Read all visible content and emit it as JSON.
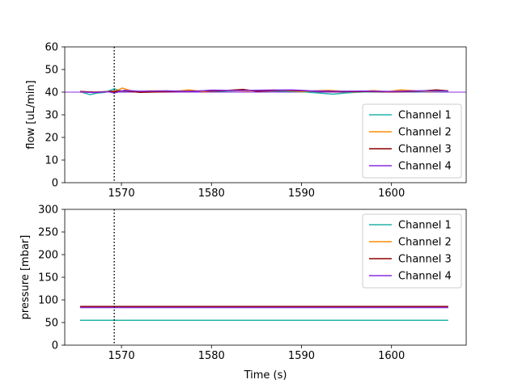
{
  "chart_data": [
    {
      "type": "line",
      "xlabel": "",
      "ylabel": "flow [uL/min]",
      "xlim": [
        1563.7,
        1608.3
      ],
      "ylim": [
        0,
        60
      ],
      "xticks": [
        1570,
        1580,
        1590,
        1600
      ],
      "yticks": [
        0,
        10,
        20,
        30,
        40,
        50,
        60
      ],
      "grid": false,
      "legend": "lower-right",
      "vline_x": 1569.2,
      "hline_y": 40,
      "series": [
        {
          "name": "Channel 1",
          "color": "#20b2aa",
          "x": [
            1565.4,
            1566.5,
            1567.3,
            1568.2,
            1569.2,
            1570.0,
            1572,
            1575,
            1578,
            1581,
            1584,
            1587,
            1590,
            1592,
            1593.5,
            1595,
            1597,
            1600,
            1603,
            1606.3
          ],
          "y": [
            40.2,
            38.9,
            39.6,
            39.9,
            41.5,
            40.5,
            40.3,
            40.3,
            40.5,
            40.4,
            40.7,
            40.5,
            40.2,
            39.6,
            39.1,
            39.7,
            40.1,
            40.2,
            40.2,
            40.3
          ]
        },
        {
          "name": "Channel 2",
          "color": "#ff8c00",
          "x": [
            1565.4,
            1567,
            1569.2,
            1570.1,
            1571.5,
            1573,
            1576,
            1577.5,
            1579,
            1581,
            1584,
            1587,
            1590,
            1593,
            1596,
            1598,
            1599.5,
            1601,
            1604,
            1606.3
          ],
          "y": [
            40.0,
            40.0,
            40.2,
            41.8,
            40.1,
            40.6,
            40.4,
            41.0,
            40.2,
            40.8,
            40.5,
            41.0,
            40.3,
            40.8,
            40.1,
            40.7,
            40.2,
            41.0,
            40.3,
            40.6
          ]
        },
        {
          "name": "Channel 3",
          "color": "#8b0000",
          "x": [
            1565.4,
            1567,
            1569.2,
            1570.5,
            1572,
            1575,
            1578,
            1581,
            1583.5,
            1585,
            1588,
            1591,
            1594,
            1597,
            1600,
            1603,
            1605,
            1606.3
          ],
          "y": [
            40.3,
            40.0,
            40.4,
            40.6,
            39.9,
            40.2,
            40.5,
            40.6,
            41.2,
            40.4,
            40.8,
            40.5,
            40.2,
            40.3,
            40.1,
            40.4,
            41.0,
            40.6
          ]
        },
        {
          "name": "Channel 4",
          "color": "#8a2be2",
          "x": [
            1565.4,
            1567,
            1568.5,
            1569.2,
            1570.3,
            1572,
            1575,
            1578,
            1580,
            1583,
            1586,
            1589,
            1591,
            1594,
            1597,
            1600,
            1603,
            1606.3
          ],
          "y": [
            40.1,
            39.8,
            40.2,
            39.6,
            40.8,
            40.4,
            40.6,
            40.3,
            40.9,
            40.7,
            40.9,
            41.0,
            40.6,
            40.4,
            40.5,
            40.3,
            40.6,
            40.5
          ]
        }
      ]
    },
    {
      "type": "line",
      "xlabel": "Time (s)",
      "ylabel": "pressure [mbar]",
      "xlim": [
        1563.7,
        1608.3
      ],
      "ylim": [
        0,
        300
      ],
      "xticks": [
        1570,
        1580,
        1590,
        1600
      ],
      "yticks": [
        0,
        50,
        100,
        150,
        200,
        250,
        300
      ],
      "grid": false,
      "legend": "upper-right",
      "vline_x": 1569.2,
      "series": [
        {
          "name": "Channel 1",
          "color": "#20b2aa",
          "x": [
            1565.4,
            1606.3
          ],
          "y": [
            55,
            55
          ]
        },
        {
          "name": "Channel 2",
          "color": "#ff8c00",
          "x": [
            1565.4,
            1606.3
          ],
          "y": [
            85,
            85
          ]
        },
        {
          "name": "Channel 3",
          "color": "#8b0000",
          "x": [
            1565.4,
            1606.3
          ],
          "y": [
            85.5,
            85.5
          ]
        },
        {
          "name": "Channel 4",
          "color": "#8a2be2",
          "x": [
            1565.4,
            1606.3
          ],
          "y": [
            83,
            83
          ]
        }
      ]
    }
  ]
}
